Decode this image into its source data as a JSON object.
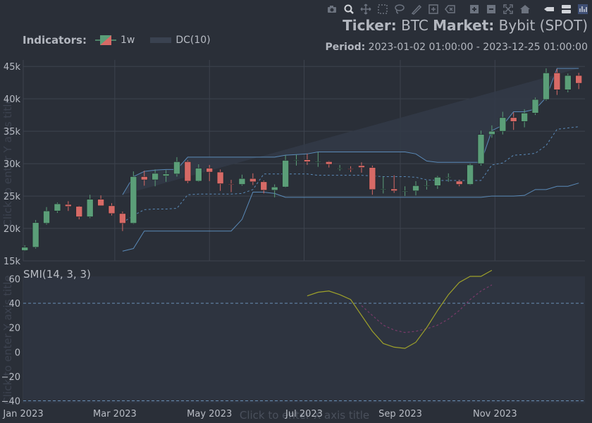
{
  "toolbar": {
    "icons": [
      "camera-icon",
      "zoom-icon",
      "pan-icon",
      "box-select-icon",
      "lasso-select-icon",
      "draw-line-icon",
      "draw-rect-icon",
      "erase-shape-icon",
      "zoom-in-icon",
      "zoom-out-icon",
      "autoscale-icon",
      "reset-axes-icon",
      "spike-lines-icon",
      "compare-hover-icon",
      "plotly-logo-icon"
    ]
  },
  "header": {
    "ticker_label": "Ticker:",
    "ticker_value": "BTC",
    "market_label": "Market:",
    "market_value": "Bybit (SPOT)",
    "period_label": "Period:",
    "period_value": "2023-01-02 01:00:00 - 2023-12-25 01:00:00"
  },
  "legend": {
    "title": "Indicators:",
    "items": [
      {
        "label": "1w"
      },
      {
        "label": "DC(10)"
      }
    ]
  },
  "axis_placeholders": {
    "y_top": "Click to enter Y axis title",
    "y_bottom": "Click to enter Y axis title",
    "x": "Click to enter X axis title"
  },
  "colors": {
    "background": "#2a2f38",
    "grid": "#3d434e",
    "increasing": "#5b9e78",
    "decreasing": "#d76a66",
    "donchian_band": "#5a8ab8",
    "donchian_fill": "#323a48",
    "smi_line": "#9ea12a",
    "smi_signal": "#7a3b6a",
    "smi_ref_line": "#6a8fb5"
  },
  "chart_data": [
    {
      "type": "candlestick",
      "name": "1w",
      "x_dates": [
        "2023-01-02",
        "2023-01-09",
        "2023-01-16",
        "2023-01-23",
        "2023-01-30",
        "2023-02-06",
        "2023-02-13",
        "2023-02-20",
        "2023-02-27",
        "2023-03-06",
        "2023-03-13",
        "2023-03-20",
        "2023-03-27",
        "2023-04-03",
        "2023-04-10",
        "2023-04-17",
        "2023-04-24",
        "2023-05-01",
        "2023-05-08",
        "2023-05-15",
        "2023-05-22",
        "2023-05-29",
        "2023-06-05",
        "2023-06-12",
        "2023-06-19",
        "2023-06-26",
        "2023-07-03",
        "2023-07-10",
        "2023-07-17",
        "2023-07-24",
        "2023-07-31",
        "2023-08-07",
        "2023-08-14",
        "2023-08-21",
        "2023-08-28",
        "2023-09-04",
        "2023-09-11",
        "2023-09-18",
        "2023-09-25",
        "2023-10-02",
        "2023-10-09",
        "2023-10-16",
        "2023-10-23",
        "2023-10-30",
        "2023-11-06",
        "2023-11-13",
        "2023-11-20",
        "2023-11-27",
        "2023-12-04",
        "2023-12-11",
        "2023-12-18",
        "2023-12-25"
      ],
      "open": [
        16600,
        17100,
        20800,
        22700,
        23700,
        23400,
        21800,
        24500,
        23500,
        22300,
        20800,
        28000,
        27500,
        28100,
        28400,
        30300,
        27300,
        29300,
        28700,
        26900,
        26800,
        27700,
        27200,
        25900,
        26400,
        30500,
        30600,
        30300,
        30300,
        29300,
        29200,
        29700,
        29400,
        26000,
        26100,
        25800,
        25800,
        26600,
        26600,
        27900,
        27300,
        26800,
        30000,
        34500,
        35000,
        37100,
        36500,
        37800,
        39900,
        44000,
        41400,
        43600
      ],
      "close": [
        17100,
        20900,
        22700,
        23800,
        23400,
        21800,
        24500,
        23500,
        22300,
        20800,
        28000,
        27500,
        28500,
        28400,
        30300,
        27300,
        29300,
        28700,
        26900,
        26800,
        27700,
        27200,
        25900,
        26400,
        30500,
        30600,
        30300,
        30300,
        29900,
        29300,
        29100,
        29400,
        26000,
        26100,
        25800,
        25800,
        26600,
        26600,
        27900,
        27900,
        26800,
        29800,
        34500,
        35000,
        37100,
        36500,
        37800,
        39900,
        44000,
        41400,
        43600,
        42400
      ],
      "high": [
        17400,
        21300,
        23300,
        24000,
        24200,
        23500,
        25200,
        25100,
        23900,
        22600,
        28800,
        28900,
        29100,
        29000,
        31000,
        30500,
        29900,
        29800,
        29100,
        27500,
        28300,
        28500,
        27400,
        26800,
        31300,
        31400,
        31500,
        31800,
        30400,
        29800,
        29600,
        30200,
        29700,
        28000,
        28200,
        26500,
        27300,
        27400,
        28100,
        28500,
        27500,
        30000,
        35100,
        35900,
        38000,
        37900,
        38400,
        40200,
        44700,
        44600,
        43900,
        44000
      ],
      "low": [
        16500,
        16900,
        20600,
        22400,
        22700,
        21400,
        21600,
        23500,
        22000,
        19600,
        20700,
        26600,
        26500,
        27200,
        28000,
        27000,
        27200,
        27300,
        25800,
        25600,
        26600,
        26700,
        25400,
        24800,
        26300,
        29700,
        29800,
        29500,
        29400,
        28900,
        28700,
        28600,
        25200,
        25400,
        25500,
        25000,
        25100,
        26000,
        26100,
        27200,
        26500,
        26700,
        29700,
        34000,
        34500,
        35200,
        35600,
        37500,
        39700,
        40600,
        41000,
        41500
      ],
      "ylim": [
        15000,
        46000
      ],
      "y_ticks": [
        "15k",
        "20k",
        "25k",
        "30k",
        "35k",
        "40k",
        "45k"
      ]
    },
    {
      "type": "line",
      "name": "DC(10)",
      "x_dates_start_index": 9,
      "upper": [
        25200,
        28000,
        28800,
        29000,
        29100,
        29100,
        31000,
        31000,
        31000,
        31000,
        31000,
        31000,
        31000,
        31000,
        31000,
        31300,
        31400,
        31500,
        31800,
        31800,
        31800,
        31800,
        31800,
        31800,
        31800,
        31800,
        31800,
        31500,
        30400,
        30200,
        30200,
        30200,
        30200,
        30200,
        35100,
        35900,
        38000,
        38000,
        38400,
        40200,
        44700,
        44700,
        44700,
        44700
      ],
      "middle": [
        20900,
        22000,
        22900,
        23000,
        23000,
        23100,
        25200,
        25300,
        25300,
        25300,
        25300,
        25400,
        26000,
        28400,
        28400,
        28400,
        28400,
        28400,
        28200,
        28200,
        28200,
        28200,
        28200,
        28100,
        28000,
        28000,
        28000,
        27900,
        27500,
        27400,
        27400,
        27400,
        27400,
        27400,
        29800,
        30100,
        31300,
        31400,
        31600,
        32800,
        35300,
        35500,
        35700,
        37000
      ],
      "lower": [
        16500,
        16900,
        19600,
        19600,
        19600,
        19600,
        19600,
        19600,
        19600,
        19600,
        19600,
        21400,
        25600,
        25600,
        25400,
        24800,
        24800,
        24800,
        24800,
        24800,
        24800,
        24800,
        24800,
        24800,
        24800,
        24800,
        24800,
        24800,
        24800,
        24800,
        24800,
        24800,
        24800,
        24800,
        25000,
        25000,
        25000,
        25100,
        26000,
        26000,
        26500,
        26500,
        27000,
        29900
      ]
    },
    {
      "type": "line",
      "name": "SMI(14, 3, 3)",
      "title": "SMI(14, 3, 3)",
      "x_dates_start_index": 26,
      "smi": [
        46,
        49,
        50,
        47,
        43,
        30,
        17,
        7,
        4,
        3,
        8,
        20,
        34,
        47,
        57,
        62,
        62,
        67
      ],
      "signal": [
        null,
        null,
        null,
        null,
        null,
        38,
        30,
        22,
        18,
        16,
        17,
        19,
        22,
        27,
        34,
        43,
        50,
        55
      ],
      "ref_lines": [
        40,
        -40
      ],
      "ylim": [
        -42,
        62
      ],
      "y_ticks": [
        "−40",
        "−20",
        "0",
        "20",
        "40",
        "60"
      ]
    }
  ],
  "x_axis": {
    "ticks": [
      {
        "date": "2023-01-01",
        "label": "Jan 2023"
      },
      {
        "date": "2023-03-01",
        "label": "Mar 2023"
      },
      {
        "date": "2023-05-01",
        "label": "May 2023"
      },
      {
        "date": "2023-07-01",
        "label": "Jul 2023"
      },
      {
        "date": "2023-09-01",
        "label": "Sep 2023"
      },
      {
        "date": "2023-11-01",
        "label": "Nov 2023"
      }
    ]
  }
}
